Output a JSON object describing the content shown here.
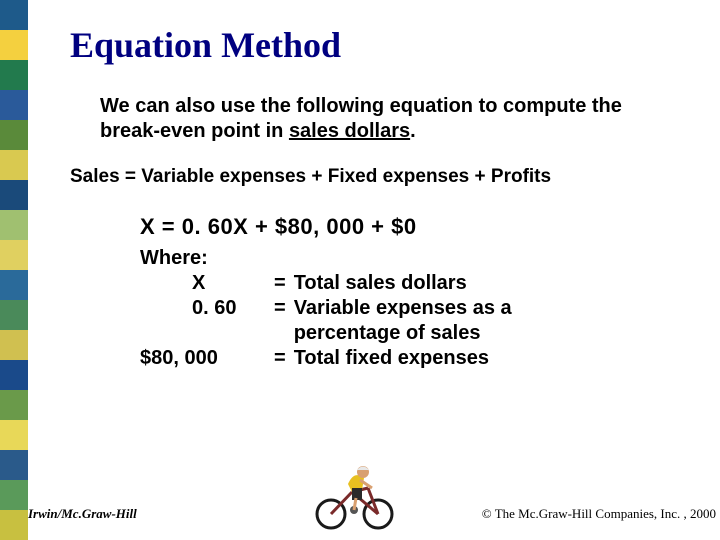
{
  "sidebar": {
    "colors": [
      "#1e5a8a",
      "#f4d03f",
      "#227a4d",
      "#2a5a9a",
      "#5a8a3a",
      "#d9c950",
      "#1a4a7a",
      "#a0c070",
      "#e0d060",
      "#2a6a9a",
      "#4a8a5a",
      "#d0c050",
      "#1a4a8a",
      "#6a9a4a",
      "#e8d858",
      "#2a5a8a",
      "#5a9a5a",
      "#c8c040"
    ]
  },
  "title": "Equation Method",
  "intro": {
    "prefix": "We can also use the following equation to compute the break-even point  in ",
    "highlight": "sales dollars",
    "suffix": "."
  },
  "equation_general": "Sales = Variable expenses + Fixed expenses + Profits",
  "equation_x": "X  =  0. 60X  +  $80, 000  +  $0",
  "where": {
    "label": "Where:",
    "rows": [
      {
        "var": "X",
        "eq": "=",
        "desc": "Total sales dollars"
      },
      {
        "var": "0. 60",
        "eq": "=",
        "desc": "Variable expenses as a"
      },
      {
        "var": "",
        "eq": "",
        "desc": "percentage of sales"
      },
      {
        "var": "$80, 000",
        "eq": "=",
        "desc": "Total fixed expenses"
      }
    ]
  },
  "footer": {
    "left": "Irwin/Mc.Graw-Hill",
    "right": "© The Mc.Graw-Hill Companies, Inc. , 2000"
  },
  "cyclist": {
    "jersey": "#e8c020",
    "shorts": "#2a2a2a",
    "skin": "#d9a070",
    "helmet": "#e8e8e8",
    "frame": "#7a2a2a",
    "wheel": "#1a1a1a"
  }
}
